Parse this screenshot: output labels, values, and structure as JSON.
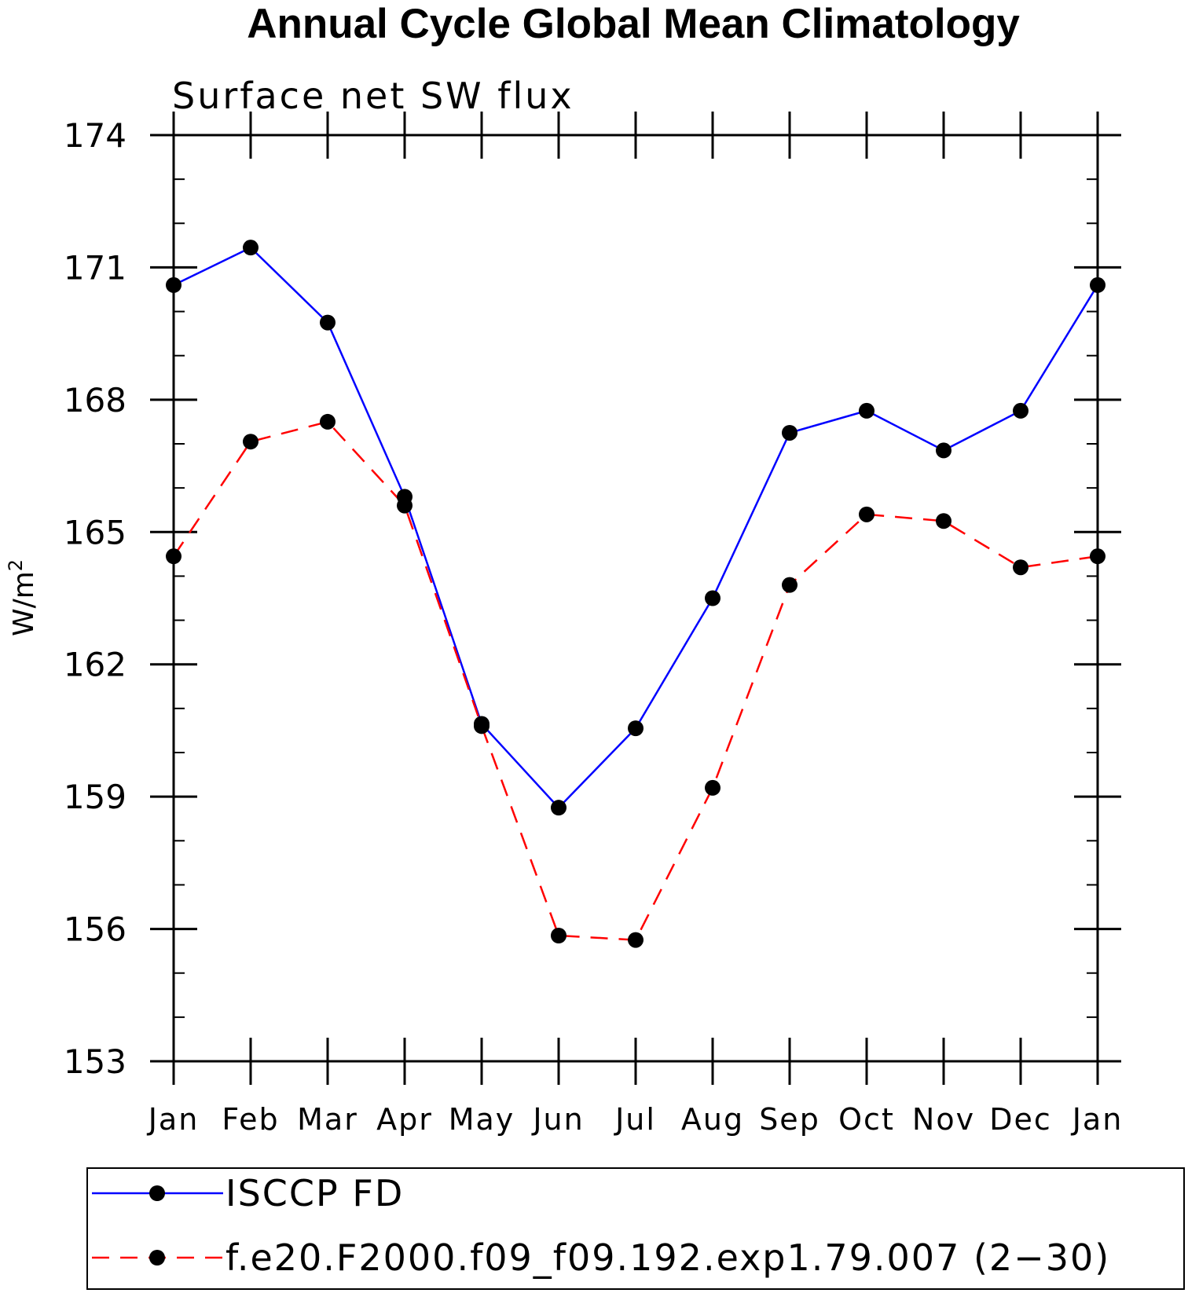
{
  "chart_data": {
    "type": "line",
    "title": "Annual Cycle Global Mean Climatology",
    "subtitle": "Surface net SW flux",
    "xlabel": "",
    "ylabel": "W/m",
    "ylabel_superscript": "2",
    "categories": [
      "Jan",
      "Feb",
      "Mar",
      "Apr",
      "May",
      "Jun",
      "Jul",
      "Aug",
      "Sep",
      "Oct",
      "Nov",
      "Dec",
      "Jan"
    ],
    "ylim": [
      153,
      174
    ],
    "yticks": [
      153,
      156,
      159,
      162,
      165,
      168,
      171,
      174
    ],
    "ytick_labels": [
      "153",
      "156",
      "159",
      "162",
      "165",
      "168",
      "171",
      "174"
    ],
    "y_minor_step": 1,
    "grid": false,
    "legend_position": "bottom",
    "series": [
      {
        "name": "ISCCP FD",
        "color": "#0000ff",
        "style": "solid",
        "marker": "filled-circle",
        "values": [
          170.6,
          171.45,
          169.75,
          165.8,
          160.65,
          158.75,
          160.55,
          163.5,
          167.25,
          167.75,
          166.85,
          167.75,
          170.6
        ]
      },
      {
        "name": "f.e20.F2000.f09_f09.192.exp1.79.007 (2−30)",
        "color": "#ff0000",
        "style": "dashed",
        "marker": "filled-circle",
        "values": [
          164.45,
          167.05,
          167.5,
          165.6,
          160.6,
          155.85,
          155.75,
          159.2,
          163.8,
          165.4,
          165.25,
          164.2,
          164.45
        ]
      }
    ]
  }
}
